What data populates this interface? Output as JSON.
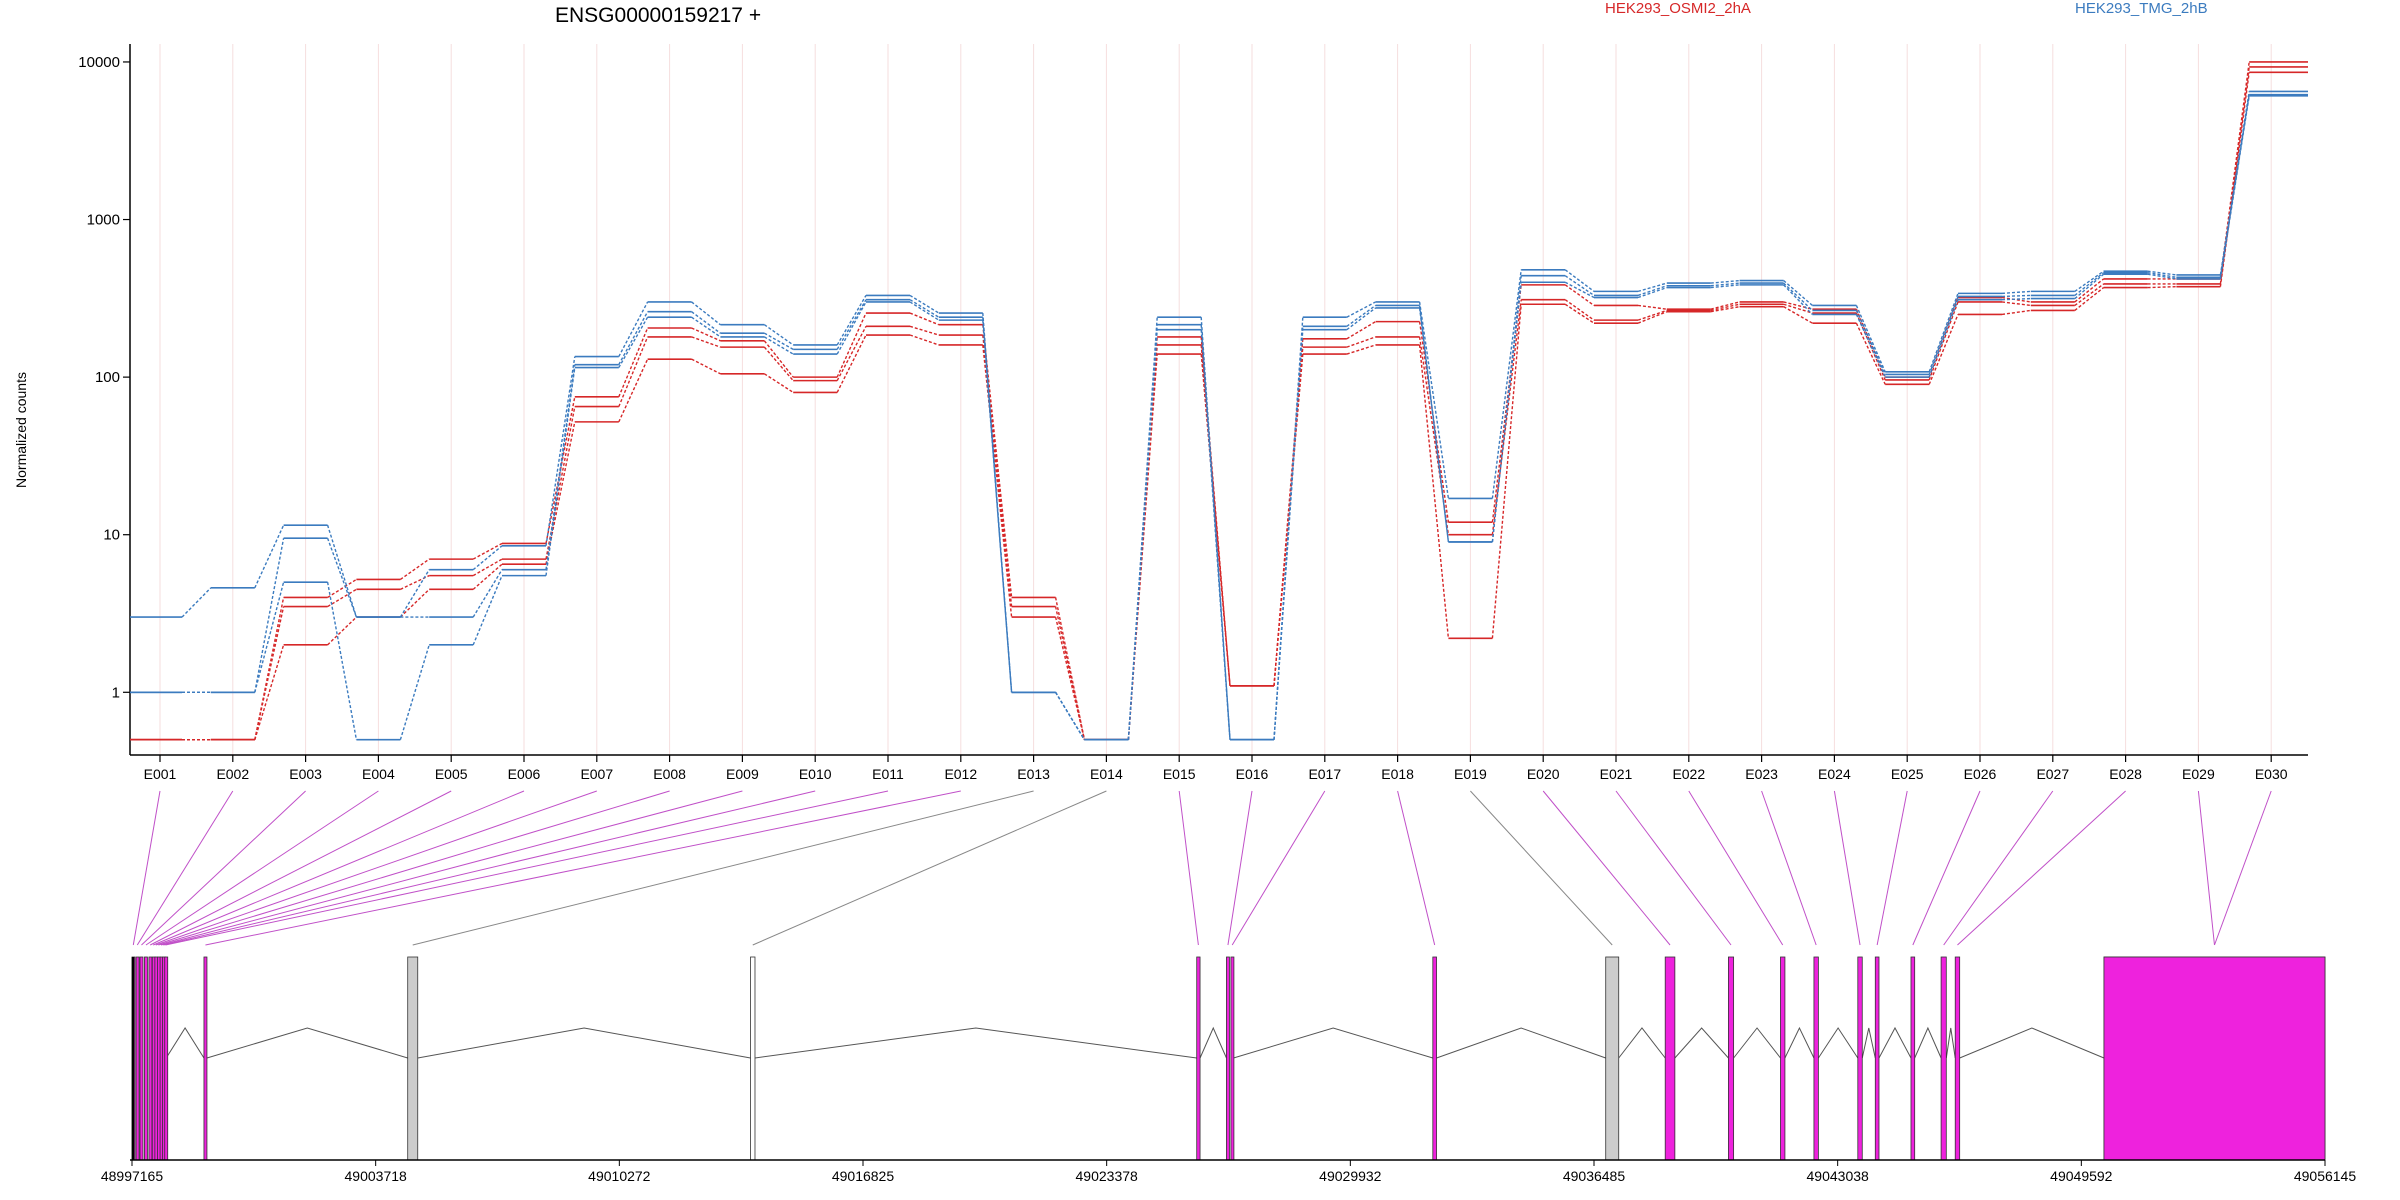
{
  "chart_data": {
    "type": "line",
    "title": "ENSG00000159217 +",
    "ylabel": "Normalized counts",
    "xlabel": "",
    "y_scale": "log",
    "ylim": [
      0.4,
      13000
    ],
    "y_ticks": [
      {
        "value": 1,
        "label": "1"
      },
      {
        "value": 10,
        "label": "10"
      },
      {
        "value": 100,
        "label": "100"
      },
      {
        "value": 1000,
        "label": "1000"
      },
      {
        "value": 10000,
        "label": "10000"
      }
    ],
    "categories": [
      "E001",
      "E002",
      "E003",
      "E004",
      "E005",
      "E006",
      "E007",
      "E008",
      "E009",
      "E010",
      "E011",
      "E012",
      "E013",
      "E014",
      "E015",
      "E016",
      "E017",
      "E018",
      "E019",
      "E020",
      "E021",
      "E022",
      "E023",
      "E024",
      "E025",
      "E026",
      "E027",
      "E028",
      "E029",
      "E030"
    ],
    "legend": [
      {
        "name": "HEK293_OSMI2_2hA",
        "color": "#d62728",
        "position": "top-center"
      },
      {
        "name": "HEK293_TMG_2hB",
        "color": "#3b7bbf",
        "position": "top-right"
      }
    ],
    "series": [
      {
        "name": "HEK293_OSMI2_2hA",
        "color": "#d62728",
        "values": [
          0.5,
          0.5,
          4.0,
          5.2,
          7.0,
          8.8,
          75,
          205,
          170,
          100,
          255,
          215,
          4.0,
          0.5,
          180,
          1.1,
          175,
          225,
          12,
          385,
          285,
          270,
          300,
          270,
          100,
          320,
          300,
          420,
          420,
          10000
        ]
      },
      {
        "name": "HEK293_OSMI2_2hA",
        "color": "#d62728",
        "values": [
          0.5,
          0.5,
          3.5,
          4.5,
          5.5,
          7.0,
          65,
          180,
          155,
          95,
          210,
          185,
          3.5,
          0.5,
          160,
          1.1,
          155,
          180,
          10,
          310,
          230,
          265,
          290,
          255,
          96,
          300,
          285,
          390,
          390,
          9300
        ]
      },
      {
        "name": "HEK293_OSMI2_2hA",
        "color": "#d62728",
        "values": [
          0.5,
          0.5,
          2.0,
          3.0,
          4.5,
          6.5,
          52,
          130,
          105,
          80,
          185,
          160,
          3.0,
          0.5,
          140,
          1.1,
          140,
          160,
          2.2,
          290,
          220,
          260,
          280,
          220,
          90,
          250,
          265,
          370,
          375,
          8600
        ]
      },
      {
        "name": "HEK293_TMG_2hB",
        "color": "#3b7bbf",
        "values": [
          3.0,
          4.6,
          11.5,
          3.0,
          6.0,
          8.5,
          135,
          300,
          215,
          160,
          330,
          255,
          1.0,
          0.5,
          240,
          0.5,
          240,
          300,
          17,
          480,
          350,
          395,
          410,
          285,
          108,
          340,
          350,
          470,
          445,
          6500
        ]
      },
      {
        "name": "HEK293_TMG_2hB",
        "color": "#3b7bbf",
        "values": [
          1.0,
          1.0,
          9.5,
          3.0,
          3.0,
          6.0,
          120,
          260,
          190,
          150,
          310,
          240,
          1.0,
          0.5,
          215,
          0.5,
          210,
          285,
          9,
          440,
          330,
          380,
          395,
          265,
          104,
          325,
          330,
          460,
          430,
          6200
        ]
      },
      {
        "name": "HEK293_TMG_2hB",
        "color": "#3b7bbf",
        "values": [
          1.0,
          1.0,
          5.0,
          0.5,
          2.0,
          5.5,
          115,
          240,
          180,
          140,
          300,
          230,
          1.0,
          0.5,
          200,
          0.5,
          200,
          275,
          9,
          400,
          320,
          370,
          385,
          250,
          100,
          310,
          315,
          450,
          420,
          6100
        ]
      }
    ],
    "genome_axis": {
      "ticks": [
        "48997165",
        "49003718",
        "49010272",
        "49016825",
        "49023378",
        "49029932",
        "49036485",
        "49043038",
        "49049592",
        "49056145"
      ],
      "range": [
        48997165,
        49056145
      ]
    },
    "exons": [
      {
        "id": "E001",
        "start": 48997165,
        "end": 48997235,
        "color": "#ee22dd"
      },
      {
        "id": "E002",
        "start": 48997275,
        "end": 48997340,
        "color": "#ee22dd"
      },
      {
        "id": "E003",
        "start": 48997380,
        "end": 48997460,
        "color": "#ee22dd"
      },
      {
        "id": "E004",
        "start": 48997500,
        "end": 48997580,
        "color": "#ee22dd"
      },
      {
        "id": "E005",
        "start": 48997620,
        "end": 48997690,
        "color": "#ee22dd"
      },
      {
        "id": "E006",
        "start": 48997710,
        "end": 48997760,
        "color": "#ee22dd"
      },
      {
        "id": "E007",
        "start": 48997780,
        "end": 48997830,
        "color": "#ee22dd"
      },
      {
        "id": "E008",
        "start": 48997850,
        "end": 48997900,
        "color": "#ee22dd"
      },
      {
        "id": "E009",
        "start": 48997920,
        "end": 48997970,
        "color": "#ee22dd"
      },
      {
        "id": "E010",
        "start": 48997985,
        "end": 48998030,
        "color": "#ee22dd"
      },
      {
        "id": "E011",
        "start": 48998045,
        "end": 48998085,
        "color": "#ee22dd"
      },
      {
        "id": "E012",
        "start": 48999100,
        "end": 48999180,
        "color": "#ee22dd"
      },
      {
        "id": "E013",
        "start": 49004580,
        "end": 49004850,
        "color": "#cccccc"
      },
      {
        "id": "E014",
        "start": 49013800,
        "end": 49013920,
        "color": "#ffffff"
      },
      {
        "id": "E015",
        "start": 49025800,
        "end": 49025890,
        "color": "#ee22dd"
      },
      {
        "id": "E016",
        "start": 49026600,
        "end": 49026680,
        "color": "#ee22dd"
      },
      {
        "id": "E017",
        "start": 49026720,
        "end": 49026790,
        "color": "#ee22dd"
      },
      {
        "id": "E018",
        "start": 49032150,
        "end": 49032250,
        "color": "#ee22dd"
      },
      {
        "id": "E019",
        "start": 49036800,
        "end": 49037150,
        "color": "#cccccc"
      },
      {
        "id": "E020",
        "start": 49038400,
        "end": 49038660,
        "color": "#ee22dd"
      },
      {
        "id": "E021",
        "start": 49040100,
        "end": 49040240,
        "color": "#ee22dd"
      },
      {
        "id": "E022",
        "start": 49041500,
        "end": 49041620,
        "color": "#ee22dd"
      },
      {
        "id": "E023",
        "start": 49042400,
        "end": 49042520,
        "color": "#ee22dd"
      },
      {
        "id": "E024",
        "start": 49043580,
        "end": 49043700,
        "color": "#ee22dd"
      },
      {
        "id": "E025",
        "start": 49044050,
        "end": 49044150,
        "color": "#ee22dd"
      },
      {
        "id": "E026",
        "start": 49045010,
        "end": 49045110,
        "color": "#ee22dd"
      },
      {
        "id": "E027",
        "start": 49045820,
        "end": 49045960,
        "color": "#ee22dd"
      },
      {
        "id": "E028",
        "start": 49046200,
        "end": 49046320,
        "color": "#ee22dd"
      },
      {
        "id": "E029",
        "start": 49050200,
        "end": 49056145,
        "color": "#ee22dd"
      },
      {
        "id": "E030",
        "start": 49050200,
        "end": 49056145,
        "color": "#ee22dd"
      }
    ],
    "grid": false
  }
}
